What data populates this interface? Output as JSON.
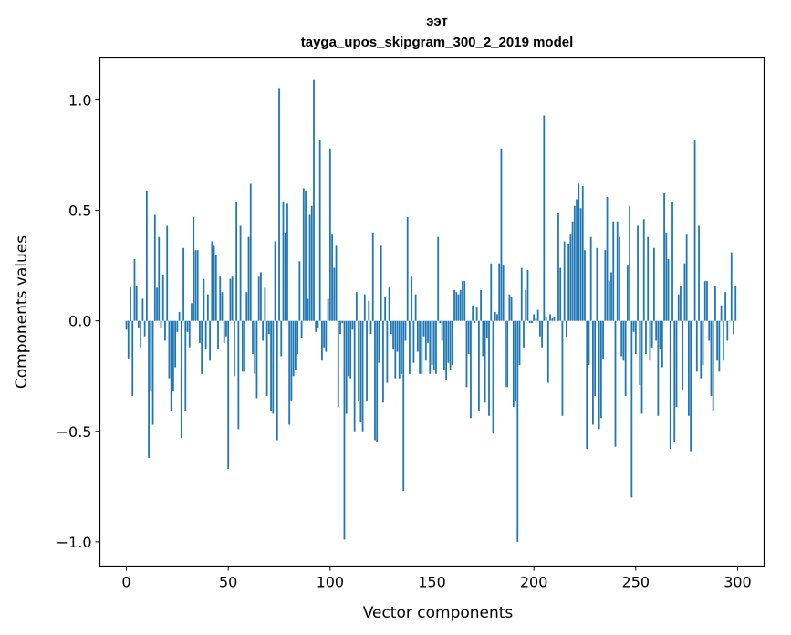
{
  "chart_data": {
    "type": "bar",
    "title": "ээт",
    "subtitle": "tayga_upos_skipgram_300_2_2019 model",
    "xlabel": "Vector components",
    "ylabel": "Components values",
    "xlim": [
      -13,
      313
    ],
    "ylim": [
      -1.11,
      1.19
    ],
    "xticks": [
      0,
      50,
      100,
      150,
      200,
      250,
      300
    ],
    "xtick_labels": [
      "0",
      "50",
      "100",
      "150",
      "200",
      "250",
      "300"
    ],
    "yticks": [
      -1.0,
      -0.5,
      0.0,
      0.5,
      1.0
    ],
    "ytick_labels": [
      "−1.0",
      "−0.5",
      "0.0",
      "0.5",
      "1.0"
    ],
    "grid": false,
    "bar_color": "#1f77b4",
    "x": "0..299",
    "values": [
      -0.04,
      -0.17,
      0.15,
      -0.34,
      0.28,
      0.16,
      -0.03,
      -0.12,
      0.1,
      -0.07,
      0.59,
      -0.62,
      -0.32,
      -0.47,
      0.48,
      0.15,
      0.38,
      -0.03,
      0.21,
      -0.09,
      0.43,
      -0.26,
      -0.41,
      -0.32,
      -0.21,
      -0.05,
      0.04,
      -0.53,
      0.33,
      -0.41,
      -0.05,
      -0.12,
      0.08,
      0.47,
      0.32,
      0.32,
      -0.1,
      -0.24,
      0.19,
      -0.13,
      0.12,
      -0.18,
      0.36,
      0.34,
      0.3,
      -0.13,
      0.2,
      0.13,
      -0.1,
      -0.07,
      -0.67,
      0.19,
      0.2,
      -0.25,
      0.54,
      -0.49,
      0.43,
      -0.23,
      -0.23,
      0.13,
      0.38,
      0.62,
      -0.15,
      -0.24,
      -0.35,
      0.2,
      0.22,
      -0.09,
      0.15,
      -0.34,
      -0.06,
      -0.41,
      -0.42,
      0.36,
      -0.54,
      1.05,
      -0.16,
      0.54,
      0.4,
      0.53,
      -0.47,
      -0.36,
      -0.25,
      -0.22,
      -0.15,
      0.27,
      -0.08,
      0.6,
      0.59,
      0.1,
      0.48,
      0.52,
      1.09,
      -0.05,
      -0.03,
      0.82,
      -0.18,
      -0.12,
      -0.14,
      0.1,
      0.78,
      0.39,
      0.24,
      0.34,
      -0.39,
      -0.06,
      -0.01,
      -0.99,
      -0.42,
      -0.25,
      -0.26,
      -0.04,
      -0.5,
      0.13,
      -0.36,
      -0.46,
      -0.5,
      0.12,
      -0.36,
      0.09,
      -0.06,
      0.4,
      -0.54,
      -0.55,
      -0.19,
      0.34,
      -0.37,
      0.11,
      -0.28,
      0.15,
      -0.06,
      -0.13,
      -0.26,
      -0.14,
      -0.26,
      -0.24,
      -0.77,
      -0.09,
      0.47,
      -0.24,
      0.2,
      -0.19,
      0.12,
      -0.14,
      -0.24,
      -0.24,
      -0.07,
      -0.18,
      -0.1,
      -0.24,
      -0.2,
      -0.22,
      -0.24,
      0.38,
      -0.01,
      -0.09,
      -0.22,
      -0.27,
      -0.19,
      -0.22,
      -0.2,
      0.14,
      0.13,
      0.12,
      0.14,
      0.18,
      0.18,
      -0.3,
      -0.15,
      -0.44,
      0.07,
      -0.01,
      0.06,
      -0.41,
      0.14,
      -0.16,
      -0.37,
      -0.08,
      -0.43,
      0.26,
      -0.51,
      0.04,
      0.03,
      0.26,
      0.78,
      0.25,
      -0.3,
      -0.3,
      0.12,
      0.11,
      -0.39,
      -0.36,
      -1.0,
      -0.2,
      0.24,
      -0.12,
      0.14,
      0.23,
      -0.01,
      -0.01,
      0.03,
      0.01,
      0.05,
      -0.07,
      -0.12,
      0.93,
      0.02,
      -0.28,
      0.03,
      0.01,
      0.02,
      0.0,
      0.49,
      0.24,
      -0.43,
      0.36,
      -0.07,
      0.35,
      0.39,
      0.45,
      0.52,
      0.55,
      0.62,
      0.51,
      0.61,
      0.32,
      -0.58,
      -0.2,
      0.38,
      -0.47,
      -0.34,
      0.33,
      -0.49,
      -0.44,
      -0.17,
      0.32,
      0.56,
      0.18,
      0.22,
      0.45,
      -0.57,
      0.45,
      0.38,
      -0.16,
      -0.18,
      -0.34,
      0.25,
      0.52,
      -0.8,
      -0.05,
      -0.15,
      0.43,
      -0.29,
      -0.42,
      0.46,
      -0.15,
      0.38,
      -0.18,
      -0.12,
      0.33,
      -0.09,
      -0.43,
      -0.13,
      -0.21,
      0.58,
      0.4,
      0.28,
      -0.58,
      0.54,
      -0.55,
      -0.39,
      0.12,
      0.16,
      -0.31,
      0.26,
      0.39,
      -0.43,
      -0.59,
      0.0,
      0.82,
      -0.23,
      0.43,
      -0.26,
      -0.2,
      0.18,
      0.18,
      -0.09,
      -0.34,
      -0.41,
      0.16,
      -0.18,
      -0.23,
      0.07,
      -0.18,
      0.13,
      -0.09,
      0.0,
      0.31,
      -0.06,
      0.16
    ]
  }
}
